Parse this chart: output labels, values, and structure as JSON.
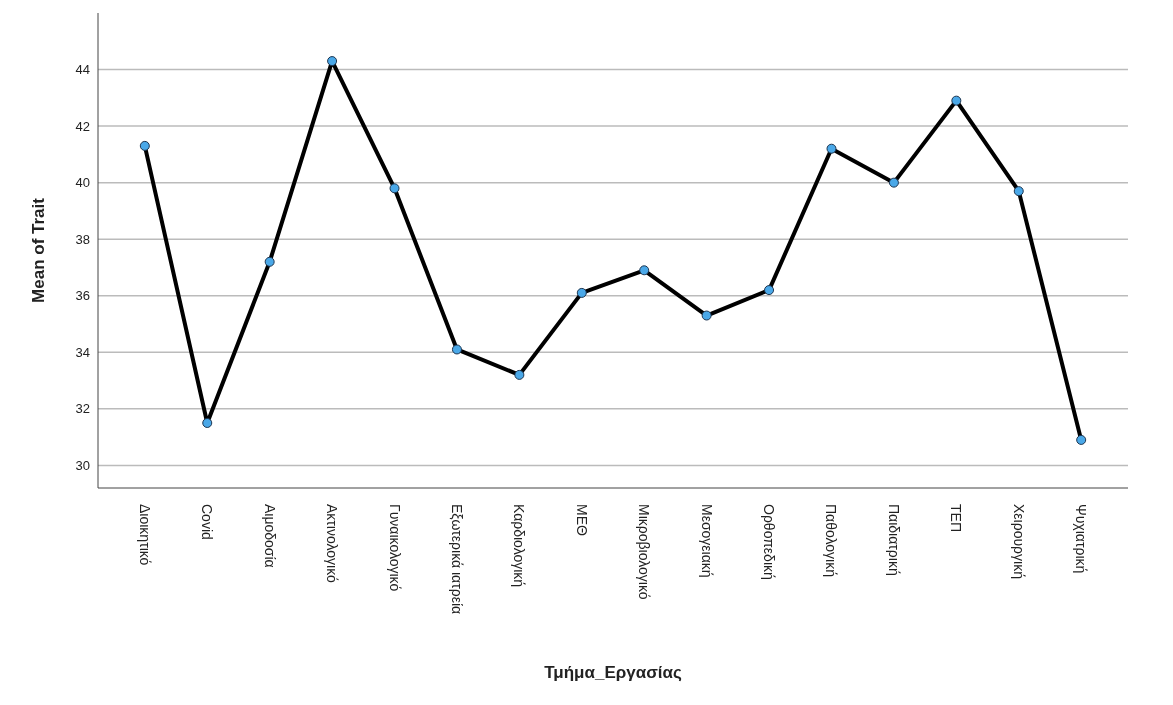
{
  "chart_data": {
    "type": "line",
    "xlabel": "Τμήμα_Εργασίας",
    "ylabel": "Mean of Trait",
    "categories": [
      "Διοικητικό",
      "Covid",
      "Αιμοδοσία",
      "Ακτινολογικό",
      "Γυναικολογικό",
      "Εξωτερικά ιατρεία",
      "Καρδιολογική",
      "ΜΕΘ",
      "Μικροβιολογικό",
      "Μεσογειακή",
      "Ορθοπεδική",
      "Παθολογική",
      "Παιδιατρική",
      "ΤΕΠ",
      "Χειρουργική",
      "Ψυχιατρική"
    ],
    "series": [
      {
        "color": "#000000",
        "values": [
          41.3,
          31.5,
          37.2,
          44.3,
          39.8,
          34.1,
          33.2,
          36.1,
          36.9,
          35.3,
          36.2,
          41.2,
          40.0,
          42.9,
          39.7,
          30.9
        ]
      }
    ],
    "ylim": [
      29.2,
      46
    ],
    "yticks": [
      30,
      32,
      34,
      36,
      38,
      40,
      42,
      44
    ],
    "grid": "y",
    "marker": "circle",
    "line_style": "solid"
  }
}
